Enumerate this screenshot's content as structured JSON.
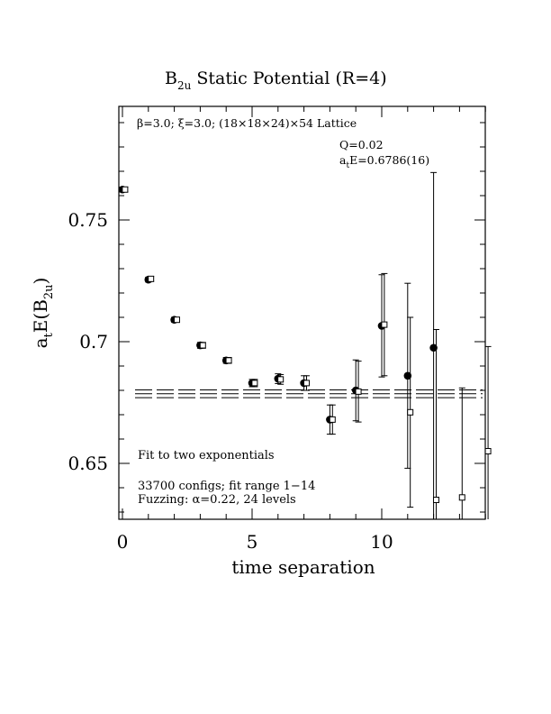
{
  "chart_data": {
    "type": "scatter",
    "title_main": "B",
    "title_sub": "2u",
    "title_rest": " Static Potential (R=4)",
    "ylabel_parts": {
      "a": "a",
      "t": "t",
      "e": "E(B",
      "sub": "2u",
      "close": ")"
    },
    "xlabel": "time separation",
    "xlim": [
      0,
      14
    ],
    "ylim": [
      0.627,
      0.797
    ],
    "x_ticks": [
      0,
      5,
      10
    ],
    "x_tick_labels": [
      "0",
      "5",
      "10"
    ],
    "y_ticks": [
      0.65,
      0.7,
      0.75
    ],
    "y_tick_labels": [
      "0.65",
      "0.7",
      "0.75"
    ],
    "annotations": {
      "lattice": "β=3.0; ξ=3.0; (18×18×24)×54 Lattice",
      "q": "Q=0.02",
      "ate_a": "a",
      "ate_t": "t",
      "ate_val": "E=0.6786(16)",
      "fit": "Fit to two exponentials",
      "configs": "33700 configs; fit range 1−14",
      "fuzzing": "Fuzzing: α=0.22, 24 levels"
    },
    "fit_line": {
      "value": 0.6786,
      "error": 0.0016,
      "x_range": [
        1,
        14
      ]
    },
    "series": [
      {
        "marker": "filled-circle",
        "points": [
          {
            "x": 0,
            "y": 0.7625,
            "err": 0.001
          },
          {
            "x": 1,
            "y": 0.7255,
            "err": 0.001
          },
          {
            "x": 2,
            "y": 0.709,
            "err": 0.001
          },
          {
            "x": 3,
            "y": 0.6985,
            "err": 0.0012
          },
          {
            "x": 4,
            "y": 0.6923,
            "err": 0.0012
          },
          {
            "x": 5,
            "y": 0.683,
            "err": 0.0015
          },
          {
            "x": 6,
            "y": 0.6848,
            "err": 0.002
          },
          {
            "x": 7,
            "y": 0.683,
            "err": 0.003
          },
          {
            "x": 8,
            "y": 0.668,
            "err": 0.006
          },
          {
            "x": 9,
            "y": 0.68,
            "err": 0.0125
          },
          {
            "x": 10,
            "y": 0.7065,
            "err": 0.021
          },
          {
            "x": 11,
            "y": 0.686,
            "err": 0.038
          },
          {
            "x": 12,
            "y": 0.6975,
            "err": 0.072
          }
        ]
      },
      {
        "marker": "open-square",
        "points": [
          {
            "x": 0.1,
            "y": 0.7625,
            "err": 0.001
          },
          {
            "x": 1.1,
            "y": 0.7258,
            "err": 0.001
          },
          {
            "x": 2.1,
            "y": 0.709,
            "err": 0.001
          },
          {
            "x": 3.1,
            "y": 0.6985,
            "err": 0.0012
          },
          {
            "x": 4.1,
            "y": 0.6923,
            "err": 0.0012
          },
          {
            "x": 5.1,
            "y": 0.683,
            "err": 0.0015
          },
          {
            "x": 6.1,
            "y": 0.6845,
            "err": 0.002
          },
          {
            "x": 7.1,
            "y": 0.683,
            "err": 0.003
          },
          {
            "x": 8.1,
            "y": 0.668,
            "err": 0.006
          },
          {
            "x": 9.1,
            "y": 0.6795,
            "err": 0.0125
          },
          {
            "x": 10.1,
            "y": 0.707,
            "err": 0.021
          },
          {
            "x": 11.1,
            "y": 0.671,
            "err": 0.039
          },
          {
            "x": 12.1,
            "y": 0.635,
            "err": 0.07
          },
          {
            "x": 13.1,
            "y": 0.636,
            "err": 0.045
          },
          {
            "x": 14.1,
            "y": 0.655,
            "err": 0.043
          }
        ]
      }
    ]
  }
}
